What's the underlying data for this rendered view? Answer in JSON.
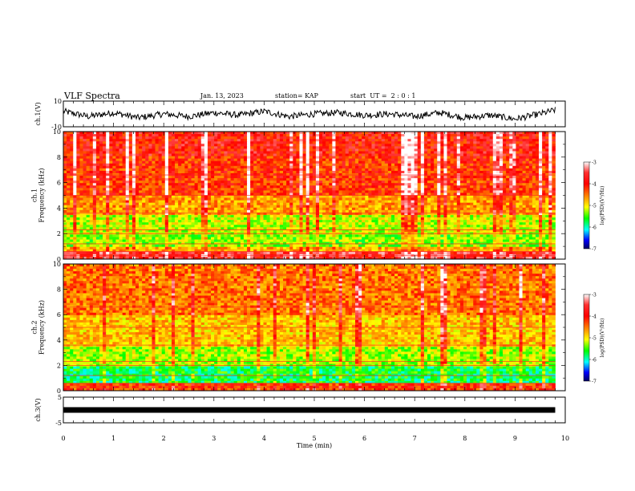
{
  "header": {
    "title": "VLF Spectra",
    "date": "Jan. 13, 2023",
    "station": "station= KAP",
    "start": "start  UT =  2 : 0 : 1"
  },
  "chart_data": [
    {
      "type": "line",
      "panel": "ch1-waveform",
      "ylabel": "ch.1(V)",
      "ylim": [
        -10,
        10
      ],
      "yticks": [
        "10",
        "-10"
      ],
      "xlim": [
        0,
        10
      ],
      "x": [
        0,
        0.5,
        1.0,
        1.5,
        2.0,
        2.5,
        3.0,
        3.5,
        4.0,
        4.5,
        5.0,
        5.5,
        6.0,
        6.5,
        7.0,
        7.5,
        8.0,
        8.5,
        9.0,
        9.5,
        9.8
      ],
      "y": [
        2,
        -2,
        1,
        -3,
        0,
        -2,
        1,
        -1,
        2,
        -2,
        0,
        1,
        -1,
        0,
        -2,
        1,
        -3,
        -1,
        -4,
        0,
        3
      ],
      "color": "#000000"
    },
    {
      "type": "heatmap",
      "panel": "ch1-spectrogram",
      "ylabel": "ch.1\nFrequency (kHz)",
      "yticks": [
        "0",
        "2",
        "4",
        "6",
        "8",
        "10"
      ],
      "ylim": [
        0,
        10
      ],
      "xlim": [
        0,
        10
      ],
      "colorbar": {
        "label": "log(PSD)(V²/Hz)",
        "ticks": [
          "-3",
          "-4",
          "-5",
          "-6",
          "-7"
        ],
        "range": [
          -7,
          -3
        ]
      },
      "band_levels": [
        {
          "freq_khz": [
            0,
            0.5
          ],
          "log_psd": -3.6
        },
        {
          "freq_khz": [
            0.5,
            1.0
          ],
          "log_psd": -4.6
        },
        {
          "freq_khz": [
            1.0,
            2.0
          ],
          "log_psd": -5.3
        },
        {
          "freq_khz": [
            2.0,
            3.5
          ],
          "log_psd": -5.1
        },
        {
          "freq_khz": [
            3.5,
            5.0
          ],
          "log_psd": -4.5
        },
        {
          "freq_khz": [
            5.0,
            8.0
          ],
          "log_psd": -4.0
        },
        {
          "freq_khz": [
            8.0,
            10.0
          ],
          "log_psd": -3.8
        }
      ]
    },
    {
      "type": "heatmap",
      "panel": "ch2-spectrogram",
      "ylabel": "ch.2\nFrequency (kHz)",
      "yticks": [
        "0",
        "2",
        "4",
        "6",
        "8",
        "10"
      ],
      "ylim": [
        0,
        10
      ],
      "xlim": [
        0,
        10
      ],
      "colorbar": {
        "label": "log(PSD)(V²/Hz)",
        "ticks": [
          "-3",
          "-4",
          "-5",
          "-6",
          "-7"
        ],
        "range": [
          -7,
          -3
        ]
      },
      "band_levels": [
        {
          "freq_khz": [
            0,
            0.5
          ],
          "log_psd": -4.0
        },
        {
          "freq_khz": [
            0.5,
            2.0
          ],
          "log_psd": -5.7
        },
        {
          "freq_khz": [
            2.0,
            3.5
          ],
          "log_psd": -5.2
        },
        {
          "freq_khz": [
            3.5,
            6.0
          ],
          "log_psd": -4.7
        },
        {
          "freq_khz": [
            6.0,
            10.0
          ],
          "log_psd": -4.3
        }
      ]
    },
    {
      "type": "line",
      "panel": "ch3-waveform",
      "ylabel": "ch.3(V)",
      "ylim": [
        -5,
        5
      ],
      "yticks": [
        "5",
        "0",
        "-5"
      ],
      "xlim": [
        0,
        10
      ],
      "xticks": [
        "0",
        "1",
        "2",
        "3",
        "4",
        "5",
        "6",
        "7",
        "8",
        "9",
        "10"
      ],
      "xlabel": "Time (min)",
      "x": [
        0,
        9.8
      ],
      "y": [
        0,
        0
      ],
      "color": "#000000"
    }
  ],
  "colors": {
    "colormap": [
      "#ffffff",
      "#ff0000",
      "#ff8000",
      "#ffff00",
      "#00ff00",
      "#00ffff",
      "#0000ff",
      "#000080"
    ]
  }
}
